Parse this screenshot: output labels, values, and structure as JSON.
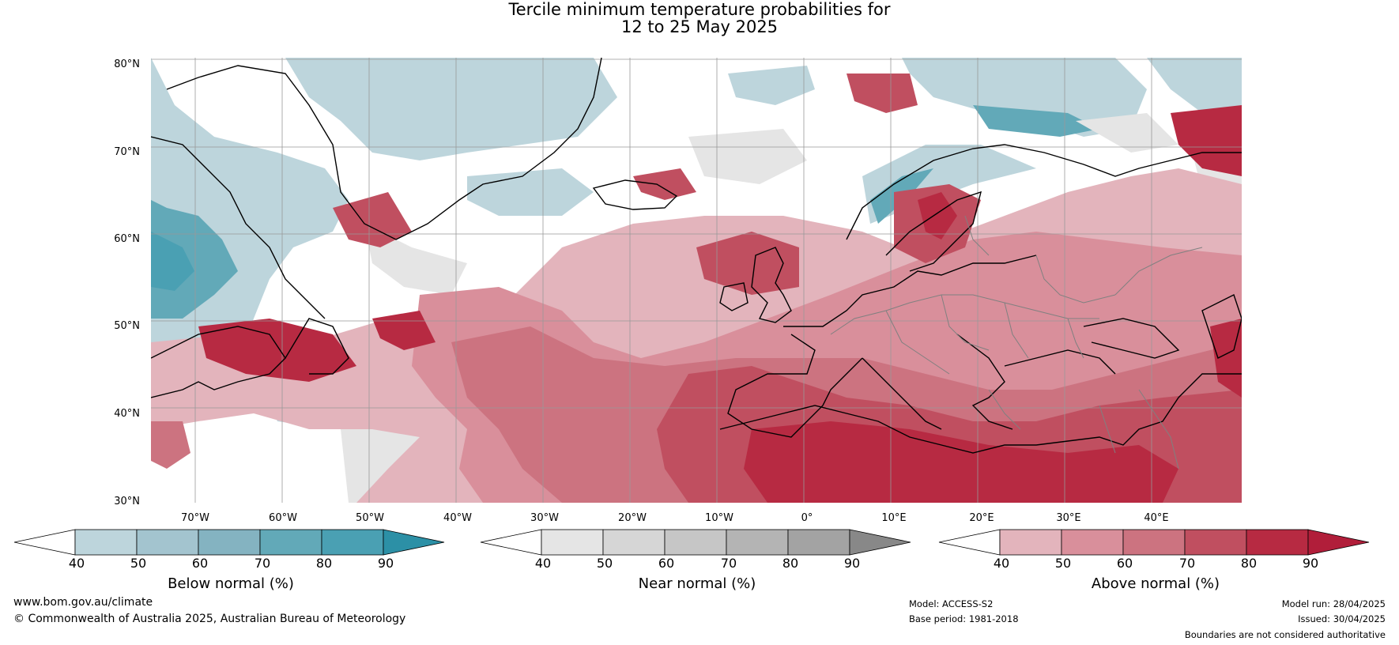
{
  "title": {
    "line1": "Tercile minimum temperature probabilities for",
    "line2": "12 to 25 May 2025"
  },
  "map": {
    "lat_labels": [
      "80°N",
      "70°N",
      "60°N",
      "50°N",
      "40°N",
      "30°N"
    ],
    "lon_labels": [
      "70°W",
      "60°W",
      "50°W",
      "40°W",
      "30°W",
      "20°W",
      "10°W",
      "0°",
      "10°E",
      "20°E",
      "30°E",
      "40°E"
    ],
    "land_outline_color": "#000000",
    "border_color": "#808080",
    "grid": true
  },
  "colorbars": [
    {
      "title": "Below normal (%)",
      "ticks": [
        "40",
        "50",
        "60",
        "70",
        "80",
        "90"
      ],
      "colors": [
        "#ffffff",
        "#bdd5dc",
        "#a3c4cf",
        "#84b3c1",
        "#62a9b8",
        "#4aa0b3",
        "#2c90a6"
      ]
    },
    {
      "title": "Near normal (%)",
      "ticks": [
        "40",
        "50",
        "60",
        "70",
        "80",
        "90"
      ],
      "colors": [
        "#ffffff",
        "#e5e5e5",
        "#d6d6d6",
        "#c6c6c6",
        "#b4b4b4",
        "#a3a3a3",
        "#888888"
      ]
    },
    {
      "title": "Above normal (%)",
      "ticks": [
        "40",
        "50",
        "60",
        "70",
        "80",
        "90"
      ],
      "colors": [
        "#ffffff",
        "#e3b4bc",
        "#d98f9b",
        "#cc7380",
        "#c04f60",
        "#b72a42",
        "#b11e3a"
      ]
    }
  ],
  "footer": {
    "website": "www.bom.gov.au/climate",
    "copyright": "© Commonwealth of Australia 2025, Australian Bureau of Meteorology",
    "model": "Model: ACCESS-S2",
    "base_period": "Base period: 1981-2018",
    "model_run": "Model run: 28/04/2025",
    "issued": "Issued: 30/04/2025",
    "disclaimer": "Boundaries are not considered authoritative"
  }
}
